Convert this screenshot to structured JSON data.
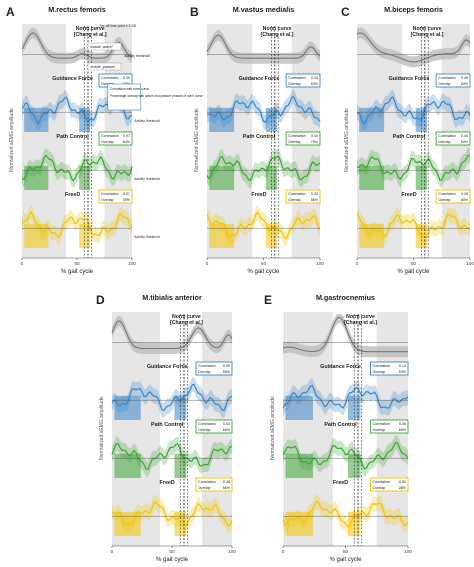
{
  "figure": {
    "panels": [
      {
        "letter": "A",
        "title": "M.rectus femoris"
      },
      {
        "letter": "B",
        "title": "M.vastus medialis"
      },
      {
        "letter": "C",
        "title": "M.biceps femoris"
      },
      {
        "letter": "D",
        "title": "M.tibialis anterior"
      },
      {
        "letter": "E",
        "title": "M.gastrocnemius"
      }
    ],
    "norm_label_1": "Norm curve",
    "norm_label_2": "[Chang et al.]",
    "ylabel": "Normalized sEMG amplitude",
    "xlabel": "% gait cycle",
    "corr_label": "Correlation",
    "overlap_label": "Overlap",
    "rows": [
      "Guidance Force",
      "Path Control",
      "FreeD"
    ],
    "annotations_A": {
      "toe_off": "Toe-off time point ± 1 SD",
      "muscle_active": "muscle „active\"",
      "activity_threshold": "Activity threshold",
      "muscle_passive": "muscle „passive\"",
      "callout_lines": [
        "Correlation with norm curve",
        "Percentage overlap with active and passive phases of norm curve"
      ]
    }
  },
  "colors": {
    "norm": "#777777",
    "guidance": "#3a86c6",
    "path": "#3ea535",
    "freed": "#f2c400",
    "shade": "#e6e6e6"
  },
  "chart_data": [
    {
      "panel": "A",
      "type": "area",
      "xlim": [
        0,
        100
      ],
      "xticks": [
        0,
        50,
        100
      ],
      "series": [
        {
          "name": "Guidance Force",
          "correlation": "0.35",
          "overlap": "70%"
        },
        {
          "name": "Path Control",
          "correlation": "0.97",
          "overlap": "64%"
        },
        {
          "name": "FreeD",
          "correlation": "-0.07",
          "overlap": "25%"
        }
      ]
    },
    {
      "panel": "B",
      "type": "area",
      "xlim": [
        0,
        100
      ],
      "xticks": [
        0,
        50,
        100
      ],
      "series": [
        {
          "name": "Guidance Force",
          "correlation": "0.44",
          "overlap": "63%"
        },
        {
          "name": "Path Control",
          "correlation": "0.43",
          "overlap": "75%"
        },
        {
          "name": "FreeD",
          "correlation": "0.30",
          "overlap": "56%"
        }
      ]
    },
    {
      "panel": "C",
      "type": "area",
      "xlim": [
        0,
        100
      ],
      "xticks": [
        0,
        50,
        100
      ],
      "series": [
        {
          "name": "Guidance Force",
          "correlation": "0.46",
          "overlap": "64%"
        },
        {
          "name": "Path Control",
          "correlation": "0.45",
          "overlap": "63%"
        },
        {
          "name": "FreeD",
          "correlation": "0.28",
          "overlap": "60%"
        }
      ]
    },
    {
      "panel": "D",
      "type": "area",
      "xlim": [
        0,
        100
      ],
      "xticks": [
        0,
        50,
        100
      ],
      "series": [
        {
          "name": "Guidance Force",
          "correlation": "0.59",
          "overlap": "58%"
        },
        {
          "name": "Path Control",
          "correlation": "0.53",
          "overlap": "66%"
        },
        {
          "name": "FreeD",
          "correlation": "-0.48",
          "overlap": "56%"
        }
      ]
    },
    {
      "panel": "E",
      "type": "area",
      "xlim": [
        0,
        100
      ],
      "xticks": [
        0,
        50,
        100
      ],
      "series": [
        {
          "name": "Guidance Force",
          "correlation": "0.14",
          "overlap": "54%"
        },
        {
          "name": "Path Control",
          "correlation": "0.06",
          "overlap": "66%"
        },
        {
          "name": "FreeD",
          "correlation": "-0.50",
          "overlap": "28%"
        }
      ]
    }
  ]
}
